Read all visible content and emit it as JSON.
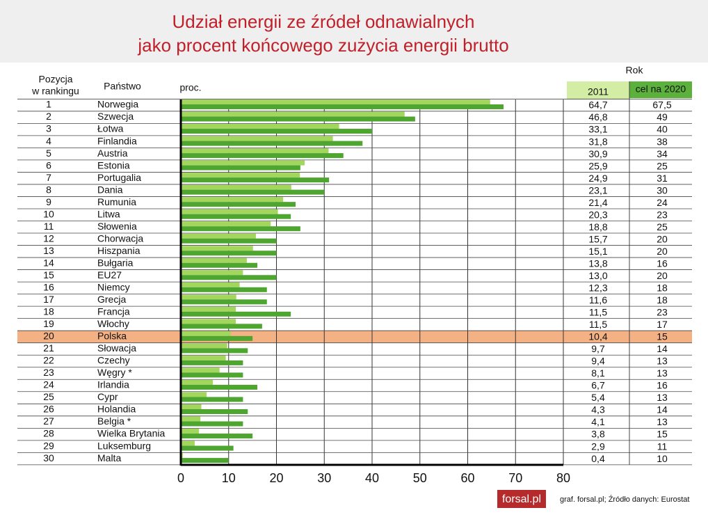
{
  "chart_data": {
    "type": "bar",
    "title": [
      "Udział energii ze źródeł odnawialnych",
      "jako procent końcowego zużycia energii brutto"
    ],
    "rank_header": [
      "Pozycja",
      "w rankingu"
    ],
    "country_header": "Państwo",
    "unit_label": "proc.",
    "year_header": "Rok",
    "ranks": [
      1,
      2,
      3,
      4,
      5,
      6,
      7,
      8,
      9,
      10,
      11,
      12,
      13,
      14,
      15,
      16,
      17,
      18,
      19,
      20,
      21,
      22,
      23,
      24,
      25,
      26,
      27,
      28,
      29,
      30
    ],
    "categories": [
      "Norwegia",
      "Szwecja",
      "Łotwa",
      "Finlandia",
      "Austria",
      "Estonia",
      "Portugalia",
      "Dania",
      "Rumunia",
      "Litwa",
      "Słowenia",
      "Chorwacja",
      "Hiszpania",
      "Bułgaria",
      "EU27",
      "Niemcy",
      "Grecja",
      "Francja",
      "Włochy",
      "Polska",
      "Słowacja",
      "Czechy",
      "Węgry *",
      "Irlandia",
      "Cypr",
      "Holandia",
      "Belgia *",
      "Wielka Brytania",
      "Luksemburg",
      "Malta"
    ],
    "series": [
      {
        "name": "2011",
        "color": "#a3d65c",
        "header_color": "#d3eea4",
        "values": [
          64.7,
          46.8,
          33.1,
          31.8,
          30.9,
          25.9,
          24.9,
          23.1,
          21.4,
          20.3,
          18.8,
          15.7,
          15.1,
          13.8,
          13.0,
          12.3,
          11.6,
          11.5,
          11.5,
          10.4,
          9.7,
          9.4,
          8.1,
          6.7,
          5.4,
          4.3,
          4.1,
          3.8,
          2.9,
          0.4
        ],
        "value_labels": [
          "64,7",
          "46,8",
          "33,1",
          "31,8",
          "30,9",
          "25,9",
          "24,9",
          "23,1",
          "21,4",
          "20,3",
          "18,8",
          "15,7",
          "15,1",
          "13,8",
          "13,0",
          "12,3",
          "11,6",
          "11,5",
          "11,5",
          "10,4",
          "9,7",
          "9,4",
          "8,1",
          "6,7",
          "5,4",
          "4,3",
          "4,1",
          "3,8",
          "2,9",
          "0,4"
        ]
      },
      {
        "name": "cel na 2020",
        "color": "#4ea52f",
        "header_color": "#5cb03c",
        "values": [
          67.5,
          49,
          40,
          38,
          34,
          25,
          31,
          30,
          24,
          23,
          25,
          20,
          20,
          16,
          20,
          18,
          18,
          23,
          17,
          15,
          14,
          13,
          13,
          16,
          13,
          14,
          13,
          15,
          11,
          10
        ],
        "value_labels": [
          "67,5",
          "49",
          "40",
          "38",
          "34",
          "25",
          "31",
          "30",
          "24",
          "23",
          "25",
          "20",
          "20",
          "16",
          "20",
          "18",
          "18",
          "23",
          "17",
          "15",
          "14",
          "13",
          "13",
          "16",
          "13",
          "14",
          "13",
          "15",
          "11",
          "10"
        ]
      }
    ],
    "xlim": [
      0,
      80
    ],
    "xticks": [
      0,
      10,
      20,
      30,
      40,
      50,
      60,
      70,
      80
    ],
    "grid": true,
    "highlight": "Polska",
    "highlight_color": "#f4b183",
    "logo": "forsal.pl",
    "source": "graf. forsal.pl;  Źródło danych: Eurostat"
  }
}
